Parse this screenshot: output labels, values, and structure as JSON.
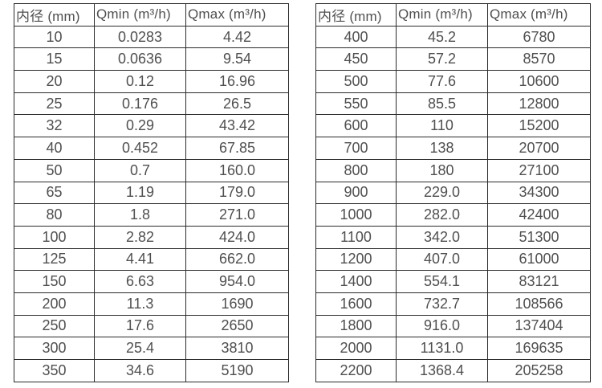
{
  "page": {
    "background_color": "#ffffff",
    "text_color": "#4f4f4f",
    "border_color": "#2b2b2b"
  },
  "tables": [
    {
      "name": "flow-spec-table-small-diameters",
      "headers": [
        "内径 (mm)",
        "Qmin (m³/h)",
        "Qmax (m³/h)"
      ],
      "rows": [
        [
          "10",
          "0.0283",
          "4.42"
        ],
        [
          "15",
          "0.0636",
          "9.54"
        ],
        [
          "20",
          "0.12",
          "16.96"
        ],
        [
          "25",
          "0.176",
          "26.5"
        ],
        [
          "32",
          "0.29",
          "43.42"
        ],
        [
          "40",
          "0.452",
          "67.85"
        ],
        [
          "50",
          "0.7",
          "160.0"
        ],
        [
          "65",
          "1.19",
          "179.0"
        ],
        [
          "80",
          "1.8",
          "271.0"
        ],
        [
          "100",
          "2.82",
          "424.0"
        ],
        [
          "125",
          "4.41",
          "662.0"
        ],
        [
          "150",
          "6.63",
          "954.0"
        ],
        [
          "200",
          "11.3",
          "1690"
        ],
        [
          "250",
          "17.6",
          "2650"
        ],
        [
          "300",
          "25.4",
          "3810"
        ],
        [
          "350",
          "34.6",
          "5190"
        ]
      ]
    },
    {
      "name": "flow-spec-table-large-diameters",
      "headers": [
        "内径 (mm)",
        "Qmin (m³/h)",
        "Qmax (m³/h)"
      ],
      "rows": [
        [
          "400",
          "45.2",
          "6780"
        ],
        [
          "450",
          "57.2",
          "8570"
        ],
        [
          "500",
          "77.6",
          "10600"
        ],
        [
          "550",
          "85.5",
          "12800"
        ],
        [
          "600",
          "110",
          "15200"
        ],
        [
          "700",
          "138",
          "20700"
        ],
        [
          "800",
          "180",
          "27100"
        ],
        [
          "900",
          "229.0",
          "34300"
        ],
        [
          "1000",
          "282.0",
          "42400"
        ],
        [
          "1100",
          "342.0",
          "51300"
        ],
        [
          "1200",
          "407.0",
          "61000"
        ],
        [
          "1400",
          "554.1",
          "83121"
        ],
        [
          "1600",
          "732.7",
          "108566"
        ],
        [
          "1800",
          "916.0",
          "137404"
        ],
        [
          "2000",
          "1131.0",
          "169635"
        ],
        [
          "2200",
          "1368.4",
          "205258"
        ]
      ]
    }
  ]
}
